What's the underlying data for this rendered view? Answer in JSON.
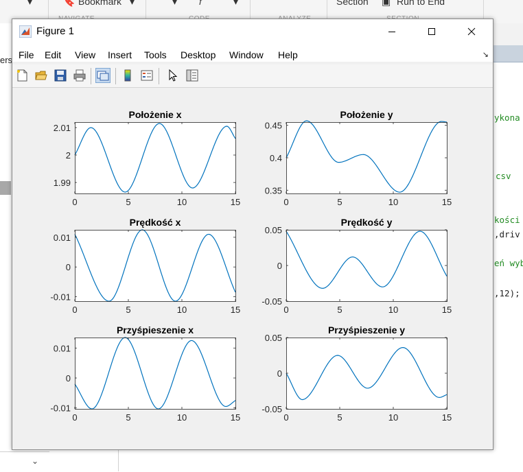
{
  "background": {
    "toolstrip": {
      "items": [
        "Bookmark",
        "Section",
        "Run to End"
      ],
      "sections": [
        "NAVIGATE",
        "CODE",
        "ANALYZE",
        "SECTION"
      ]
    },
    "left_panel_text": "ers",
    "code_lines": [
      "ykona",
      "csv",
      "kości",
      ",driv",
      "eń wyb",
      ",12);"
    ]
  },
  "window": {
    "title": "Figure 1",
    "menu": [
      "File",
      "Edit",
      "View",
      "Insert",
      "Tools",
      "Desktop",
      "Window",
      "Help"
    ],
    "toolbar_icons": [
      "new-figure-icon",
      "open-file-icon",
      "save-icon",
      "print-icon",
      "link-plot-icon",
      "colorbar-icon",
      "legend-icon",
      "pointer-icon",
      "property-editor-icon"
    ]
  },
  "colors": {
    "line": "#0072bd",
    "figure_bg": "#f0f0f0",
    "axes_bg": "#ffffff"
  },
  "chart_data": [
    {
      "type": "line",
      "title": "Położenie x",
      "xlim": [
        0,
        15
      ],
      "ylim": [
        1.986,
        2.012
      ],
      "xticks": [
        0,
        5,
        10,
        15
      ],
      "yticks": [
        1.99,
        2,
        2.01
      ],
      "ytick_labels": [
        "1.99",
        "2",
        "2.01"
      ],
      "x": [
        0,
        1.5,
        4.7,
        7.9,
        11.0,
        14.2,
        15
      ],
      "y": [
        2.0,
        2.01,
        1.9865,
        2.0115,
        1.988,
        2.0105,
        2.006
      ],
      "xlabel": "",
      "ylabel": ""
    },
    {
      "type": "line",
      "title": "Położenie y",
      "xlim": [
        0,
        15
      ],
      "ylim": [
        0.345,
        0.455
      ],
      "xticks": [
        0,
        5,
        10,
        15
      ],
      "yticks": [
        0.35,
        0.4,
        0.45
      ],
      "ytick_labels": [
        "0.35",
        "0.4",
        "0.45"
      ],
      "x": [
        0,
        1.9,
        4.9,
        7.2,
        10.6,
        14.5,
        15
      ],
      "y": [
        0.4,
        0.457,
        0.393,
        0.405,
        0.347,
        0.456,
        0.455
      ],
      "xlabel": "",
      "ylabel": ""
    },
    {
      "type": "line",
      "title": "Prędkość x",
      "xlim": [
        0,
        15
      ],
      "ylim": [
        -0.0115,
        0.0125
      ],
      "xticks": [
        0,
        5,
        10,
        15
      ],
      "yticks": [
        -0.01,
        0,
        0.01
      ],
      "ytick_labels": [
        "-0.01",
        "0",
        "0.01"
      ],
      "x": [
        0,
        3.2,
        6.3,
        9.4,
        12.5,
        15
      ],
      "y": [
        0.011,
        -0.0115,
        0.0125,
        -0.0115,
        0.011,
        -0.0085
      ],
      "xlabel": "",
      "ylabel": ""
    },
    {
      "type": "line",
      "title": "Prędkość y",
      "xlim": [
        0,
        15
      ],
      "ylim": [
        -0.05,
        0.05
      ],
      "xticks": [
        0,
        5,
        10,
        15
      ],
      "yticks": [
        -0.05,
        0,
        0.05
      ],
      "ytick_labels": [
        "-0.05",
        "0",
        "0.05"
      ],
      "x": [
        0,
        3.4,
        6.2,
        9.0,
        12.5,
        15
      ],
      "y": [
        0.048,
        -0.032,
        0.012,
        -0.03,
        0.048,
        -0.015
      ],
      "xlabel": "",
      "ylabel": ""
    },
    {
      "type": "line",
      "title": "Przyśpieszenie x",
      "xlim": [
        0,
        15
      ],
      "ylim": [
        -0.0103,
        0.0135
      ],
      "xticks": [
        0,
        5,
        10,
        15
      ],
      "yticks": [
        -0.01,
        0,
        0.01
      ],
      "ytick_labels": [
        "-0.01",
        "0",
        "0.01"
      ],
      "x": [
        0,
        1.6,
        4.7,
        7.8,
        10.9,
        14.1,
        15
      ],
      "y": [
        -0.002,
        -0.0103,
        0.0135,
        -0.0103,
        0.0125,
        -0.0095,
        -0.0075
      ],
      "xlabel": "",
      "ylabel": ""
    },
    {
      "type": "line",
      "title": "Przyśpieszenie y",
      "xlim": [
        0,
        15
      ],
      "ylim": [
        -0.05,
        0.05
      ],
      "xticks": [
        0,
        5,
        10,
        15
      ],
      "yticks": [
        -0.05,
        0,
        0.05
      ],
      "ytick_labels": [
        "-0.05",
        "0",
        "0.05"
      ],
      "x": [
        0,
        1.5,
        4.8,
        7.6,
        10.9,
        14.3,
        15
      ],
      "y": [
        0.0,
        -0.037,
        0.025,
        -0.021,
        0.036,
        -0.034,
        -0.03
      ],
      "xlabel": "",
      "ylabel": ""
    }
  ]
}
